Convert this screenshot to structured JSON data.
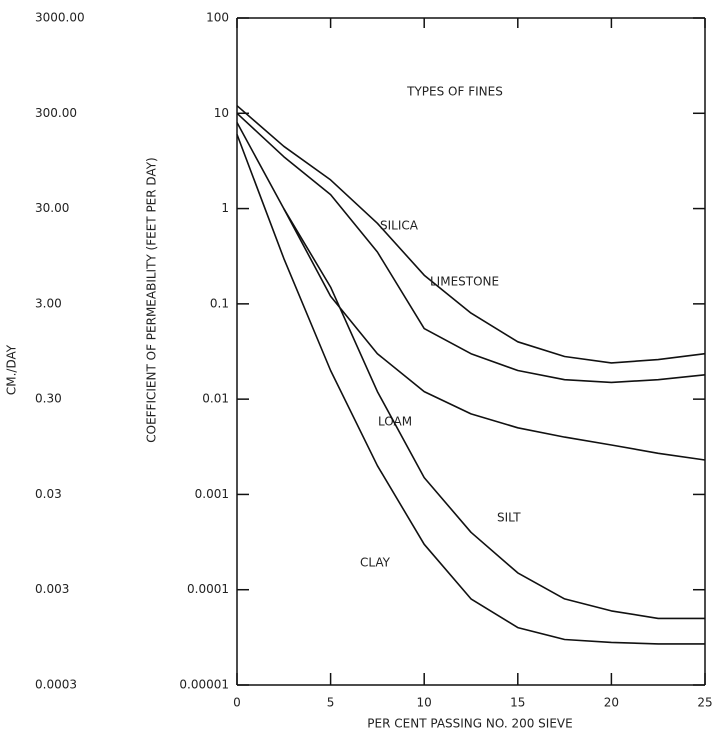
{
  "chart_data": {
    "type": "line",
    "annotation": "TYPES OF FINES",
    "xlabel": "PER CENT PASSING NO. 200 SIEVE",
    "ylabel": "COEFFICIENT OF PERMEABILITY (FEET PER DAY)",
    "y2label": "CM./DAY",
    "log_scale": true,
    "grid": false,
    "color": "#111111",
    "x": [
      0,
      2.5,
      5,
      7.5,
      10,
      12.5,
      15,
      17.5,
      20,
      22.5,
      25
    ],
    "xlim": [
      0,
      25
    ],
    "xticks": [
      0,
      5,
      10,
      15,
      20,
      25
    ],
    "ylim": [
      1e-05,
      100
    ],
    "yticks": [
      100,
      10,
      1,
      0.1,
      0.01,
      0.001,
      0.0001,
      1e-05
    ],
    "y2lim": [
      0.0003,
      3000
    ],
    "y2ticks": [
      {
        "value": 3000,
        "label": "3000.00"
      },
      {
        "value": 300,
        "label": "300.00"
      },
      {
        "value": 30,
        "label": "30.00"
      },
      {
        "value": 3,
        "label": "3.00"
      },
      {
        "value": 0.3,
        "label": "0.30"
      },
      0.03,
      0.003,
      0.0003
    ],
    "series": [
      {
        "name": "SILICA",
        "values": [
          12,
          4.5,
          2,
          0.7,
          0.2,
          0.08,
          0.04,
          0.028,
          0.024,
          0.026,
          0.03
        ]
      },
      {
        "name": "LIMESTONE",
        "values": [
          10,
          3.5,
          1.4,
          0.35,
          0.055,
          0.03,
          0.02,
          0.016,
          0.015,
          0.016,
          0.018
        ]
      },
      {
        "name": "LOAM",
        "values": [
          null,
          1,
          0.12,
          0.03,
          0.012,
          0.007,
          0.005,
          0.004,
          0.0033,
          0.0027,
          0.0023
        ]
      },
      {
        "name": "SILT",
        "values": [
          8,
          1,
          0.15,
          0.012,
          0.0015,
          0.0004,
          0.00015,
          8e-05,
          6e-05,
          5e-05,
          5e-05
        ]
      },
      {
        "name": "CLAY",
        "values": [
          6,
          0.3,
          0.02,
          0.002,
          0.0003,
          8e-05,
          4e-05,
          3e-05,
          2.8e-05,
          2.7e-05,
          2.7e-05
        ]
      }
    ]
  }
}
